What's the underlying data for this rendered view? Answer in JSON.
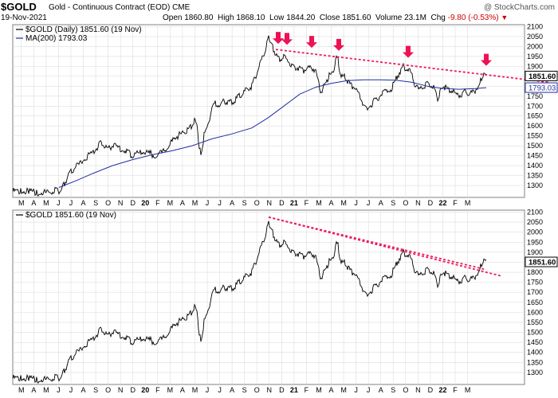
{
  "header": {
    "symbol": "$GOLD",
    "description": "Gold - Continuous Contract (EOD)",
    "exchange": "CME",
    "date": "19-Nov-2021",
    "copyright": "@ StockCharts.com",
    "open_label": "Open",
    "open": "1860.80",
    "high_label": "High",
    "high": "1868.10",
    "low_label": "Low",
    "low": "1844.20",
    "close_label": "Close",
    "close": "1851.60",
    "volume_label": "Volume",
    "volume": "23.1M",
    "chg_label": "Chg",
    "chg": "-9.80 (-0.53%)",
    "chg_arrow": "▼"
  },
  "colors": {
    "price": "#000000",
    "ma": "#1f2f9e",
    "trendline": "#ee1c5a",
    "arrow": "#ee1155",
    "grid": "#dddddd",
    "frame": "#808080"
  },
  "chart_data": [
    {
      "type": "line",
      "title": "$GOLD (Daily) 1851.60 (19 Nov)",
      "legend": [
        {
          "label": "$GOLD (Daily) 1851.60 (19 Nov)",
          "color": "#000000"
        },
        {
          "label": "MA(200) 1793.03",
          "color": "#1f2f9e"
        }
      ],
      "x_ticks": [
        "M",
        "A",
        "M",
        "J",
        "J",
        "A",
        "S",
        "O",
        "N",
        "D",
        "20",
        "F",
        "M",
        "A",
        "M",
        "J",
        "J",
        "A",
        "S",
        "O",
        "N",
        "D",
        "21",
        "F",
        "M",
        "A",
        "M",
        "J",
        "J",
        "A",
        "S",
        "O",
        "N",
        "D",
        "22",
        "F",
        "M"
      ],
      "y_ticks": [
        1300,
        1350,
        1400,
        1450,
        1500,
        1550,
        1600,
        1650,
        1700,
        1750,
        1800,
        1850,
        1900,
        1950,
        2000,
        2050,
        2100
      ],
      "ylim": [
        1240,
        2110
      ],
      "grid": true,
      "last_value_labels": [
        {
          "text": "1851.60",
          "value": 1851.6,
          "style": "price"
        },
        {
          "text": "1793.03",
          "value": 1793.03,
          "style": "ma"
        }
      ],
      "series": [
        {
          "name": "$GOLD (Daily)",
          "role": "price",
          "points": [
            [
              0,
              1280
            ],
            [
              10,
              1278
            ],
            [
              20,
              1282
            ],
            [
              30,
              1275
            ],
            [
              38,
              1272
            ],
            [
              45,
              1275
            ],
            [
              52,
              1285
            ],
            [
              56,
              1290
            ],
            [
              60,
              1280
            ],
            [
              64,
              1310
            ],
            [
              68,
              1342
            ],
            [
              72,
              1372
            ],
            [
              78,
              1400
            ],
            [
              85,
              1420
            ],
            [
              92,
              1452
            ],
            [
              100,
              1470
            ],
            [
              106,
              1500
            ],
            [
              110,
              1520
            ],
            [
              115,
              1505
            ],
            [
              120,
              1495
            ],
            [
              125,
              1510
            ],
            [
              132,
              1500
            ],
            [
              140,
              1490
            ],
            [
              145,
              1475
            ],
            [
              150,
              1460
            ],
            [
              158,
              1470
            ],
            [
              165,
              1480
            ],
            [
              172,
              1470
            ],
            [
              180,
              1460
            ],
            [
              188,
              1475
            ],
            [
              195,
              1500
            ],
            [
              200,
              1530
            ],
            [
              205,
              1555
            ],
            [
              210,
              1565
            ],
            [
              215,
              1580
            ],
            [
              220,
              1590
            ],
            [
              225,
              1610
            ],
            [
              228,
              1635
            ],
            [
              232,
              1590
            ],
            [
              234,
              1490
            ],
            [
              236,
              1470
            ],
            [
              240,
              1560
            ],
            [
              245,
              1620
            ],
            [
              250,
              1700
            ],
            [
              255,
              1725
            ],
            [
              260,
              1710
            ],
            [
              265,
              1740
            ],
            [
              270,
              1720
            ],
            [
              275,
              1730
            ],
            [
              280,
              1745
            ],
            [
              285,
              1765
            ],
            [
              290,
              1780
            ],
            [
              295,
              1800
            ],
            [
              300,
              1810
            ],
            [
              305,
              1860
            ],
            [
              310,
              1920
            ],
            [
              315,
              1970
            ],
            [
              318,
              2000
            ],
            [
              321,
              2070
            ],
            [
              324,
              2020
            ],
            [
              327,
              2000
            ],
            [
              330,
              1960
            ],
            [
              335,
              1945
            ],
            [
              340,
              1955
            ],
            [
              345,
              1935
            ],
            [
              350,
              1920
            ],
            [
              355,
              1900
            ],
            [
              360,
              1905
            ],
            [
              365,
              1890
            ],
            [
              370,
              1900
            ],
            [
              375,
              1905
            ],
            [
              380,
              1890
            ],
            [
              385,
              1800
            ],
            [
              388,
              1775
            ],
            [
              392,
              1830
            ],
            [
              397,
              1860
            ],
            [
              402,
              1880
            ],
            [
              405,
              1950
            ],
            [
              408,
              1940
            ],
            [
              412,
              1855
            ],
            [
              416,
              1860
            ],
            [
              420,
              1830
            ],
            [
              425,
              1810
            ],
            [
              430,
              1800
            ],
            [
              435,
              1760
            ],
            [
              440,
              1720
            ],
            [
              444,
              1690
            ],
            [
              450,
              1720
            ],
            [
              455,
              1740
            ],
            [
              462,
              1765
            ],
            [
              468,
              1780
            ],
            [
              475,
              1800
            ],
            [
              480,
              1840
            ],
            [
              485,
              1880
            ],
            [
              490,
              1905
            ],
            [
              495,
              1895
            ],
            [
              500,
              1870
            ],
            [
              505,
              1815
            ],
            [
              510,
              1790
            ],
            [
              515,
              1810
            ],
            [
              520,
              1820
            ],
            [
              525,
              1810
            ],
            [
              530,
              1790
            ],
            [
              533,
              1735
            ],
            [
              536,
              1780
            ],
            [
              540,
              1810
            ],
            [
              545,
              1800
            ],
            [
              550,
              1790
            ],
            [
              555,
              1770
            ],
            [
              560,
              1765
            ],
            [
              565,
              1775
            ],
            [
              570,
              1780
            ],
            [
              575,
              1770
            ],
            [
              580,
              1790
            ],
            [
              585,
              1810
            ],
            [
              588,
              1850
            ],
            [
              591,
              1868
            ],
            [
              594,
              1862
            ]
          ]
        },
        {
          "name": "MA(200)",
          "role": "ma",
          "points": [
            [
              58,
              1290
            ],
            [
              80,
              1325
            ],
            [
              100,
              1360
            ],
            [
              125,
              1400
            ],
            [
              150,
              1430
            ],
            [
              175,
              1455
            ],
            [
              200,
              1475
            ],
            [
              225,
              1500
            ],
            [
              250,
              1535
            ],
            [
              275,
              1560
            ],
            [
              300,
              1590
            ],
            [
              320,
              1640
            ],
            [
              340,
              1700
            ],
            [
              360,
              1760
            ],
            [
              380,
              1795
            ],
            [
              400,
              1815
            ],
            [
              420,
              1828
            ],
            [
              440,
              1832
            ],
            [
              460,
              1832
            ],
            [
              480,
              1830
            ],
            [
              500,
              1820
            ],
            [
              520,
              1800
            ],
            [
              540,
              1788
            ],
            [
              560,
              1785
            ],
            [
              580,
              1788
            ],
            [
              594,
              1793
            ]
          ]
        }
      ],
      "annotations": {
        "trendlines": [
          {
            "style": "dotted",
            "from": [
              330,
              1985
            ],
            "to": [
              672,
              1820
            ]
          }
        ],
        "arrows": [
          {
            "at": 333,
            "value": 1985
          },
          {
            "at": 344,
            "value": 1980
          },
          {
            "at": 375,
            "value": 1965
          },
          {
            "at": 409,
            "value": 1950
          },
          {
            "at": 496,
            "value": 1915
          },
          {
            "at": 594,
            "value": 1875
          }
        ]
      }
    },
    {
      "type": "line",
      "title": "$GOLD 1851.60 (19 Nov)",
      "legend": [
        {
          "label": "$GOLD 1851.60 (19 Nov)",
          "color": "#000000"
        }
      ],
      "x_ticks": [
        "M",
        "A",
        "M",
        "J",
        "J",
        "A",
        "S",
        "O",
        "N",
        "D",
        "20",
        "F",
        "M",
        "A",
        "M",
        "J",
        "J",
        "A",
        "S",
        "O",
        "N",
        "D",
        "21",
        "F",
        "M",
        "A",
        "M",
        "J",
        "J",
        "A",
        "S",
        "O",
        "N",
        "D",
        "22",
        "F",
        "M"
      ],
      "y_ticks": [
        1300,
        1350,
        1400,
        1450,
        1500,
        1550,
        1600,
        1650,
        1700,
        1750,
        1800,
        1850,
        1900,
        1950,
        2000,
        2050,
        2100
      ],
      "ylim": [
        1240,
        2110
      ],
      "grid": true,
      "last_value_labels": [
        {
          "text": "1851.60",
          "value": 1851.6,
          "style": "price"
        }
      ],
      "series": [
        {
          "name": "$GOLD",
          "role": "price",
          "points": "same as upper panel"
        }
      ],
      "annotations": {
        "trendlines": [
          {
            "style": "dotted",
            "from": [
              321,
              2075
            ],
            "to": [
              614,
              1780
            ]
          },
          {
            "style": "dotted",
            "from": [
              321,
              2075
            ],
            "to": [
              592,
              1815
            ]
          }
        ]
      }
    }
  ]
}
